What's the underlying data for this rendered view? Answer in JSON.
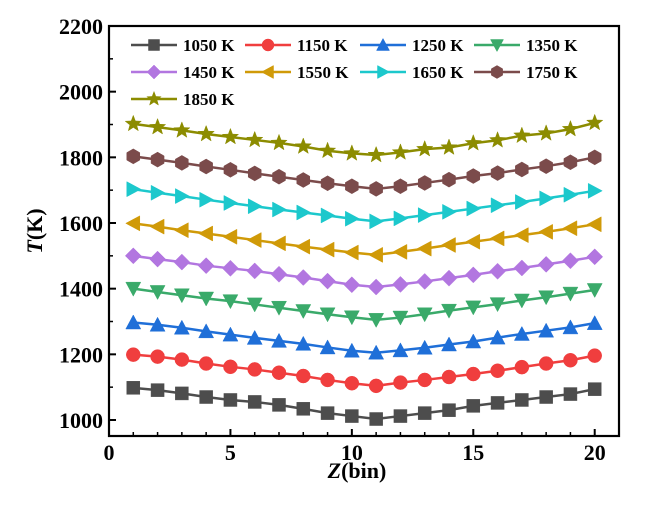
{
  "chart_data": {
    "type": "line",
    "title": "",
    "xlabel": "Z(bin)",
    "xlabel_italic_part": "Z",
    "xlabel_rest": "(bin)",
    "ylabel_italic_part": "T",
    "ylabel_rest": "(K)",
    "xlim": [
      0,
      21
    ],
    "ylim": [
      960,
      2200
    ],
    "xticks": [
      0,
      5,
      10,
      15,
      20
    ],
    "xtick_labels": [
      "0",
      "5",
      "10",
      "15",
      "20"
    ],
    "yticks": [
      1000,
      1200,
      1400,
      1600,
      1800,
      2000,
      2200
    ],
    "ytick_labels": [
      "1000",
      "1200",
      "1400",
      "1600",
      "1800",
      "2000",
      "2200"
    ],
    "grid": false,
    "legend_position": "top-left",
    "x": [
      1,
      2,
      3,
      4,
      5,
      6,
      7,
      8,
      9,
      10,
      11,
      12,
      13,
      14,
      15,
      16,
      17,
      18,
      19,
      20
    ],
    "series": [
      {
        "name": "1050 K",
        "color": "#4d4d4d",
        "marker": "square",
        "values": [
          1098,
          1091,
          1081,
          1070,
          1061,
          1055,
          1046,
          1034,
          1021,
          1012,
          1003,
          1012,
          1021,
          1030,
          1043,
          1052,
          1061,
          1070,
          1079,
          1094
        ]
      },
      {
        "name": "1150 K",
        "color": "#f03e3e",
        "marker": "circle",
        "values": [
          1199,
          1193,
          1184,
          1172,
          1162,
          1154,
          1144,
          1134,
          1122,
          1112,
          1104,
          1114,
          1122,
          1131,
          1140,
          1150,
          1161,
          1172,
          1182,
          1196
        ]
      },
      {
        "name": "1250 K",
        "color": "#1f6fd8",
        "marker": "triangle-up",
        "values": [
          1297,
          1290,
          1281,
          1270,
          1260,
          1250,
          1241,
          1232,
          1221,
          1211,
          1205,
          1212,
          1220,
          1230,
          1239,
          1251,
          1262,
          1272,
          1282,
          1295
        ]
      },
      {
        "name": "1350 K",
        "color": "#3aaa6a",
        "marker": "triangle-down",
        "values": [
          1400,
          1390,
          1380,
          1370,
          1362,
          1352,
          1342,
          1332,
          1322,
          1313,
          1305,
          1312,
          1322,
          1333,
          1343,
          1353,
          1364,
          1374,
          1385,
          1396
        ]
      },
      {
        "name": "1450 K",
        "color": "#b276e0",
        "marker": "diamond",
        "values": [
          1500,
          1490,
          1481,
          1470,
          1462,
          1454,
          1444,
          1434,
          1423,
          1412,
          1405,
          1413,
          1422,
          1432,
          1442,
          1453,
          1463,
          1474,
          1485,
          1497
        ]
      },
      {
        "name": "1550 K",
        "color": "#d09a08",
        "marker": "triangle-left",
        "values": [
          1599,
          1589,
          1578,
          1568,
          1558,
          1548,
          1538,
          1528,
          1519,
          1510,
          1503,
          1512,
          1522,
          1533,
          1543,
          1553,
          1563,
          1573,
          1584,
          1596
        ]
      },
      {
        "name": "1650 K",
        "color": "#1cc8cc",
        "marker": "triangle-right",
        "values": [
          1703,
          1692,
          1682,
          1671,
          1661,
          1651,
          1641,
          1632,
          1623,
          1613,
          1605,
          1614,
          1624,
          1634,
          1644,
          1654,
          1664,
          1675,
          1686,
          1698
        ]
      },
      {
        "name": "1750 K",
        "color": "#7b4b4b",
        "marker": "hexagon",
        "values": [
          1803,
          1793,
          1783,
          1772,
          1762,
          1751,
          1741,
          1731,
          1721,
          1712,
          1704,
          1712,
          1722,
          1732,
          1743,
          1752,
          1763,
          1773,
          1785,
          1800
        ]
      },
      {
        "name": "1850 K",
        "color": "#8c8c00",
        "marker": "star",
        "values": [
          1902,
          1892,
          1882,
          1871,
          1862,
          1853,
          1844,
          1833,
          1820,
          1812,
          1807,
          1815,
          1825,
          1830,
          1843,
          1852,
          1866,
          1873,
          1886,
          1905
        ]
      }
    ]
  }
}
